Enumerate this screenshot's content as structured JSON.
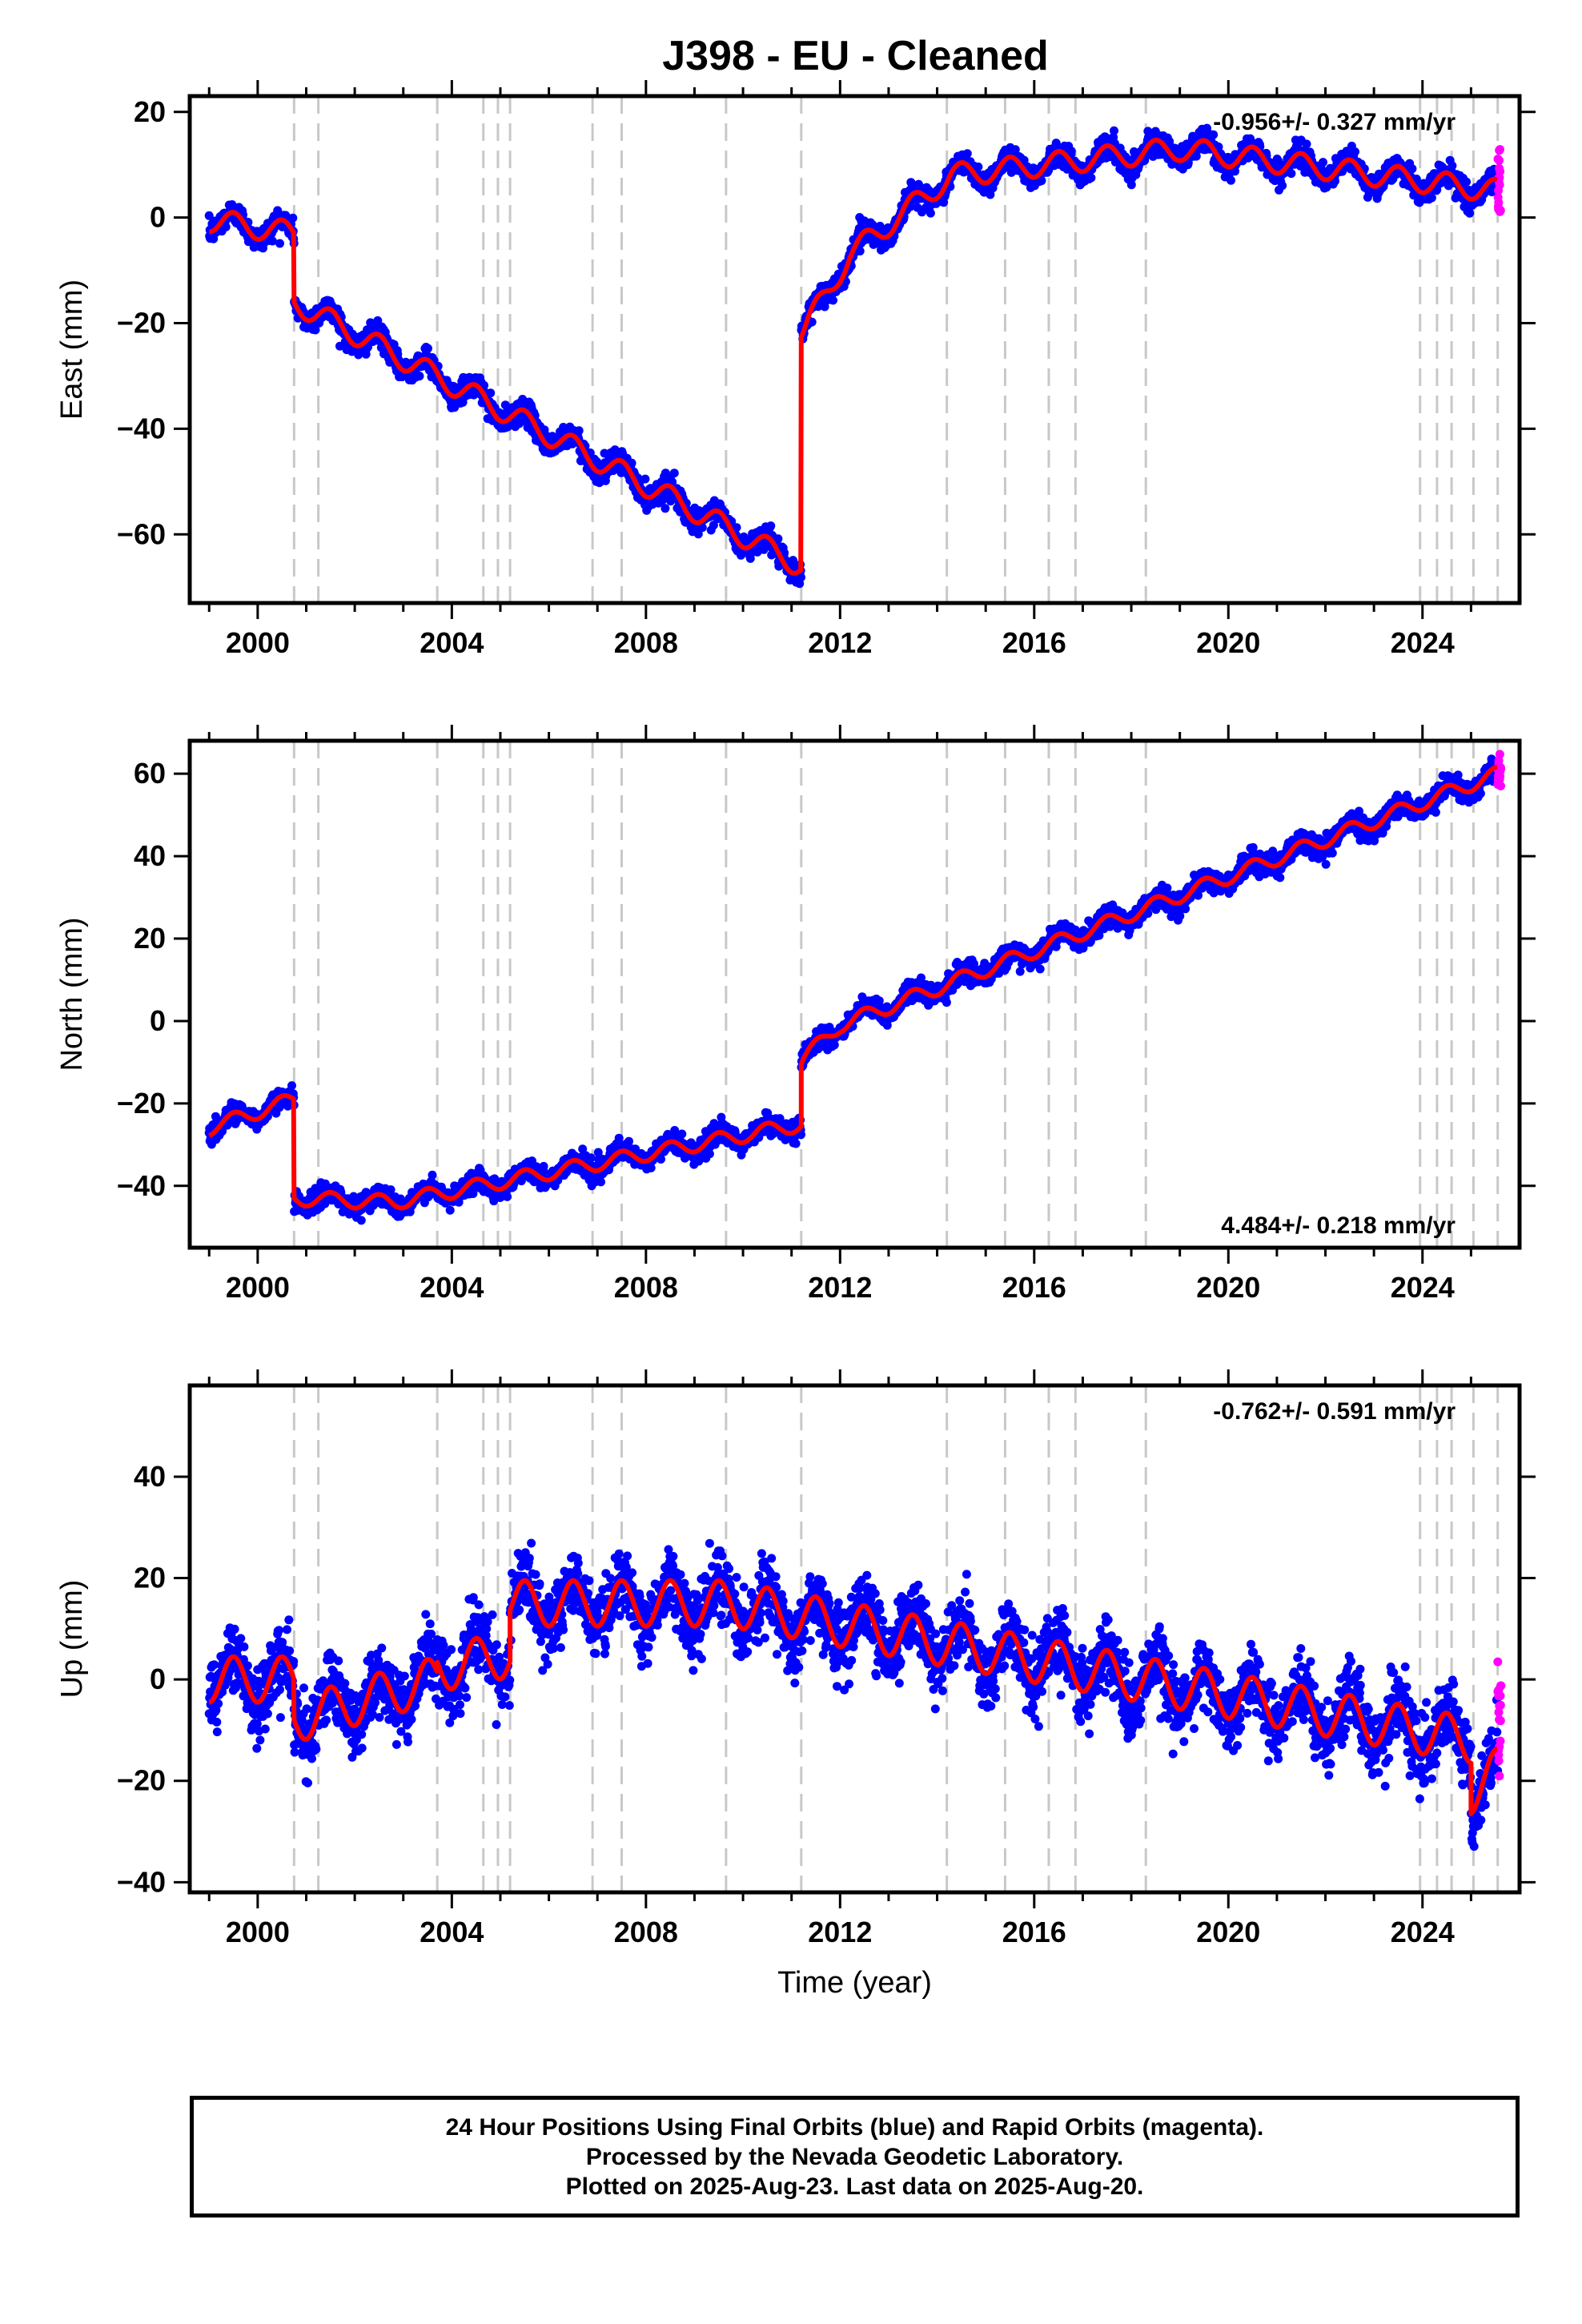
{
  "title": "J398  - EU - Cleaned",
  "footer": {
    "line1": "24 Hour Positions Using Final Orbits (blue) and Rapid Orbits (magenta).",
    "line2": "Processed by the Nevada Geodetic Laboratory.",
    "line3": "Plotted on 2025-Aug-23. Last data on 2025-Aug-20."
  },
  "colors": {
    "final": "#0000ff",
    "rapid": "#ff00ff",
    "model": "#ff0000",
    "events": "#c8c8c8"
  },
  "chart_data": [
    {
      "type": "scatter",
      "ylabel": "East (mm)",
      "xlabel": "",
      "xlim": [
        1998.6,
        2026.0
      ],
      "ylim": [
        -73,
        23
      ],
      "xticks": [
        2000,
        2004,
        2008,
        2012,
        2016,
        2020,
        2024
      ],
      "yticks": [
        -60,
        -40,
        -20,
        0,
        20
      ],
      "rate_text": "-0.956+/- 0.327 mm/yr",
      "rate_position": "top-right",
      "event_years": [
        2000.75,
        2001.25,
        2003.7,
        2004.65,
        2004.95,
        2005.2,
        2006.9,
        2007.5,
        2009.65,
        2011.2,
        2014.2,
        2015.4,
        2016.3,
        2016.85,
        2018.3,
        2023.95,
        2024.3,
        2024.6,
        2025.05,
        2025.55
      ],
      "seasonal_amplitude": 2.2,
      "scatter_spread": 2.0,
      "trend_model": [
        {
          "t0": 1999.0,
          "t1": 2000.75,
          "v0": -0.5,
          "v1": -3.0
        },
        {
          "t0": 2000.75,
          "t1": 2011.2,
          "v0": -16.0,
          "v1": -66.0
        },
        {
          "t0": 2011.2,
          "t1": 2011.25,
          "v0": -22.0,
          "v1": -21.5
        },
        {
          "t0": 2011.25,
          "t1": 2012.2,
          "v0": -21.5,
          "v1": -7.0
        },
        {
          "t0": 2012.2,
          "t1": 2014.3,
          "v0": -7.0,
          "v1": 8.0
        },
        {
          "t0": 2014.3,
          "t1": 2019.0,
          "v0": 8.0,
          "v1": 13.0
        },
        {
          "t0": 2019.0,
          "t1": 2025.55,
          "v0": 13.0,
          "v1": 5.0
        }
      ],
      "rapid_points": {
        "x_range": [
          2025.55,
          2025.62
        ],
        "y_range": [
          0.5,
          13
        ]
      }
    },
    {
      "type": "scatter",
      "ylabel": "North (mm)",
      "xlabel": "",
      "xlim": [
        1998.6,
        2026.0
      ],
      "ylim": [
        -55,
        68
      ],
      "xticks": [
        2000,
        2004,
        2008,
        2012,
        2016,
        2020,
        2024
      ],
      "yticks": [
        -40,
        -20,
        0,
        20,
        40,
        60
      ],
      "rate_text": "4.484+/- 0.218 mm/yr",
      "rate_position": "bottom-right",
      "event_years": [
        2000.75,
        2001.25,
        2003.7,
        2004.65,
        2004.95,
        2005.2,
        2006.9,
        2007.5,
        2009.65,
        2011.2,
        2014.2,
        2015.4,
        2016.3,
        2016.85,
        2018.3,
        2023.95,
        2024.3,
        2024.6,
        2025.05,
        2025.55
      ],
      "seasonal_amplitude": 1.8,
      "scatter_spread": 2.2,
      "trend_model": [
        {
          "t0": 1999.0,
          "t1": 2000.75,
          "v0": -26.0,
          "v1": -19.0
        },
        {
          "t0": 2000.75,
          "t1": 2002.8,
          "v0": -43.0,
          "v1": -44.0
        },
        {
          "t0": 2002.8,
          "t1": 2011.2,
          "v0": -44.0,
          "v1": -25.0
        },
        {
          "t0": 2011.2,
          "t1": 2011.25,
          "v0": -10.0,
          "v1": -9.0
        },
        {
          "t0": 2011.25,
          "t1": 2012.0,
          "v0": -9.0,
          "v1": -1.0
        },
        {
          "t0": 2012.0,
          "t1": 2025.55,
          "v0": -1.0,
          "v1": 60.0
        }
      ],
      "rapid_points": {
        "x_range": [
          2025.55,
          2025.62
        ],
        "y_range": [
          57,
          66
        ]
      }
    },
    {
      "type": "scatter",
      "ylabel": "Up (mm)",
      "xlabel": "Time (year)",
      "xlim": [
        1998.6,
        2026.0
      ],
      "ylim": [
        -42,
        58
      ],
      "xticks": [
        2000,
        2004,
        2008,
        2012,
        2016,
        2020,
        2024
      ],
      "yticks": [
        -40,
        -20,
        0,
        20,
        40
      ],
      "rate_text": "-0.762+/- 0.591 mm/yr",
      "rate_position": "top-right",
      "event_years": [
        2000.75,
        2001.25,
        2003.7,
        2004.65,
        2004.95,
        2005.2,
        2006.9,
        2007.5,
        2009.65,
        2011.2,
        2014.2,
        2015.4,
        2016.3,
        2016.85,
        2018.3,
        2023.95,
        2024.3,
        2024.6,
        2025.05,
        2025.55
      ],
      "seasonal_amplitude": 4.5,
      "scatter_spread": 6.0,
      "trend_model": [
        {
          "t0": 1999.0,
          "t1": 2000.75,
          "v0": 0.0,
          "v1": 0.0
        },
        {
          "t0": 2000.75,
          "t1": 2003.7,
          "v0": -8.0,
          "v1": 0.0
        },
        {
          "t0": 2003.7,
          "t1": 2005.2,
          "v0": 2.0,
          "v1": 5.0
        },
        {
          "t0": 2005.2,
          "t1": 2009.7,
          "v0": 15.0,
          "v1": 15.0
        },
        {
          "t0": 2009.7,
          "t1": 2025.0,
          "v0": 15.0,
          "v1": -12.0
        },
        {
          "t0": 2025.0,
          "t1": 2025.55,
          "v0": -22.0,
          "v1": -18.0
        }
      ],
      "rapid_points": {
        "x_range": [
          2025.55,
          2025.62
        ],
        "y_range": [
          -20,
          3.5
        ]
      }
    }
  ]
}
